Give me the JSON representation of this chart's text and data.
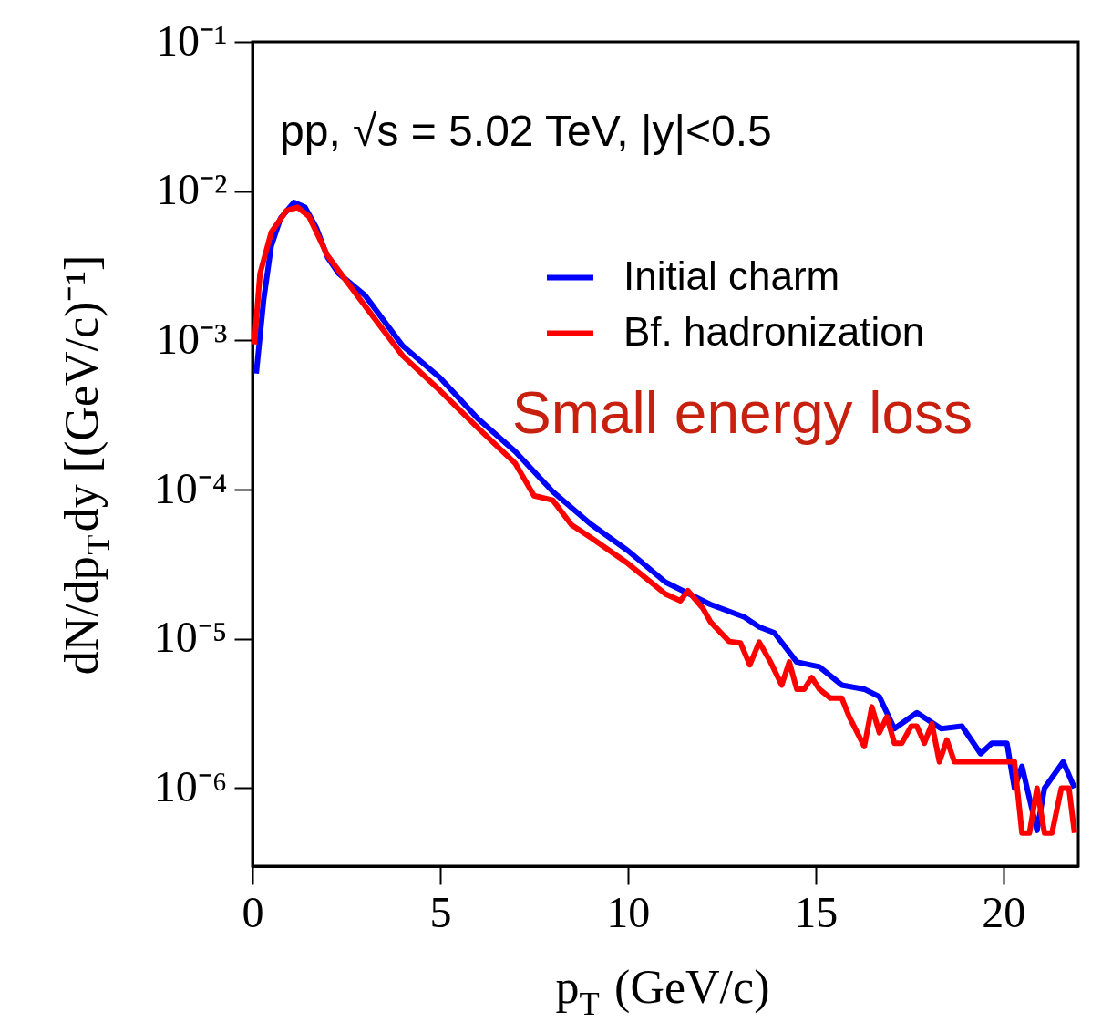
{
  "chart_data": {
    "type": "line",
    "xlabel": "p$_{T}$ (GeV/c)",
    "ylabel": "dN/dp$_{T}$dy [(GeV/c)⁻¹]",
    "annotations": [
      "pp, √s = 5.02 TeV, |y|<0.5",
      "Small energy loss"
    ],
    "series": [
      {
        "name": "Initial charm",
        "color": "#0000ff",
        "x": [
          0.1,
          0.3,
          0.5,
          0.75,
          1.1,
          1.4,
          1.7,
          2.0,
          2.3,
          3,
          4,
          5,
          6,
          7,
          8,
          9,
          10,
          11,
          12,
          12.2,
          13.1,
          13.5,
          13.9,
          14.5,
          15.1,
          15.7,
          16.3,
          16.7,
          17.1,
          17.7,
          18.35,
          18.9,
          19.4,
          19.7,
          20.1,
          20.3,
          20.5,
          20.9,
          21.1,
          21.6,
          21.9
        ],
        "values": [
          0.0006,
          0.0019,
          0.0043,
          0.0066,
          0.0084,
          0.0078,
          0.0057,
          0.0036,
          0.0028,
          0.002,
          0.00092,
          0.00056,
          0.0003,
          0.00018,
          9.7e-05,
          5.9e-05,
          3.9e-05,
          2.4e-05,
          1.8e-05,
          1.7e-05,
          1.4e-05,
          1.2e-05,
          1.1e-05,
          7e-06,
          6.5e-06,
          4.9e-06,
          4.6e-06,
          4.1e-06,
          2.5e-06,
          3.2e-06,
          2.5e-06,
          2.6e-06,
          1.7e-06,
          2e-06,
          2e-06,
          1e-06,
          1.4e-06,
          5.2e-07,
          1e-06,
          1.5e-06,
          1e-06
        ]
      },
      {
        "name": "Bf. hadronization",
        "color": "#ff0000",
        "x": [
          0.05,
          0.2,
          0.5,
          0.9,
          1.2,
          1.5,
          2.0,
          2.5,
          3,
          4,
          5,
          6,
          7,
          7.5,
          8,
          8.5,
          9,
          10,
          11,
          11.4,
          11.6,
          12,
          12.2,
          12.7,
          13.0,
          13.25,
          13.5,
          13.8,
          14.1,
          14.3,
          14.5,
          14.7,
          14.9,
          15.1,
          15.4,
          15.7,
          15.9,
          16.3,
          16.5,
          16.7,
          16.9,
          17.1,
          17.3,
          17.55,
          17.7,
          17.9,
          18.1,
          18.3,
          18.5,
          18.7,
          20.3,
          20.5,
          20.7,
          20.9,
          21.1,
          21.3,
          21.55,
          21.75,
          21.9
        ],
        "values": [
          0.00094,
          0.0028,
          0.0053,
          0.0074,
          0.0078,
          0.0068,
          0.0037,
          0.0025,
          0.0017,
          0.00079,
          0.00046,
          0.00026,
          0.00015,
          9.1e-05,
          8.5e-05,
          5.8e-05,
          4.8e-05,
          3.2e-05,
          2e-05,
          1.8e-05,
          2.1e-05,
          1.6e-05,
          1.3e-05,
          9.6e-06,
          9.4e-06,
          6.7e-06,
          9.5e-06,
          7e-06,
          4.9e-06,
          7e-06,
          4.6e-06,
          4.6e-06,
          5.5e-06,
          4.6e-06,
          4e-06,
          4e-06,
          3e-06,
          1.9e-06,
          3.5e-06,
          2.35e-06,
          3e-06,
          2e-06,
          2e-06,
          2.6e-06,
          2.6e-06,
          2e-06,
          2.7e-06,
          1.5e-06,
          2.1e-06,
          1.5e-06,
          1.5e-06,
          5e-07,
          5e-07,
          1e-06,
          5e-07,
          5e-07,
          1e-06,
          1e-06,
          5e-07
        ]
      }
    ],
    "xlim": [
      0,
      22
    ],
    "xticks": [
      0,
      5,
      10,
      15,
      20
    ],
    "ylim": [
      3e-07,
      0.1
    ],
    "yticks": [
      {
        "value": 1e-06,
        "label": "10⁻⁶"
      },
      {
        "value": 1e-05,
        "label": "10⁻⁵"
      },
      {
        "value": 0.0001,
        "label": "10⁻⁴"
      },
      {
        "value": 0.001,
        "label": "10⁻³"
      },
      {
        "value": 0.01,
        "label": "10⁻²"
      },
      {
        "value": 0.1,
        "label": "10⁻¹"
      }
    ],
    "log": true,
    "grid": false,
    "legend": "top right",
    "line_style": "solid",
    "marker": "none"
  }
}
